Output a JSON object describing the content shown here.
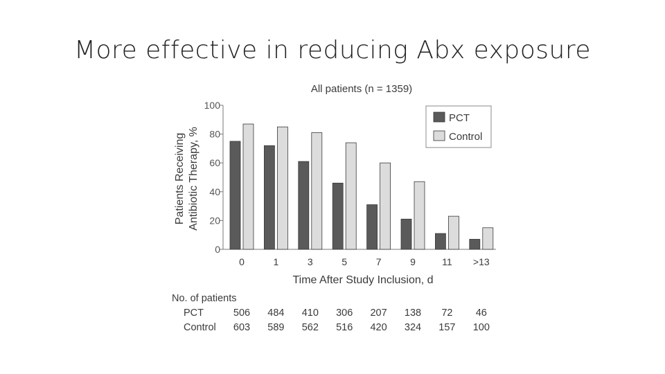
{
  "slide": {
    "title": "More effective in reducing Abx exposure"
  },
  "chart_data": {
    "type": "bar",
    "title": "All patients (n = 1359)",
    "xlabel": "Time After Study Inclusion, d",
    "ylabel_line1": "Patients Receiving",
    "ylabel_line2": "Antibiotic Therapy, %",
    "ylim": [
      0,
      100
    ],
    "yticks": [
      0,
      20,
      40,
      60,
      80,
      100
    ],
    "categories": [
      "0",
      "1",
      "3",
      "5",
      "7",
      "9",
      "11",
      ">13"
    ],
    "series": [
      {
        "name": "PCT",
        "color": "#5a5a5a",
        "values": [
          75,
          72,
          61,
          46,
          31,
          21,
          11,
          7
        ]
      },
      {
        "name": "Control",
        "color": "#dcdcdc",
        "values": [
          87,
          85,
          81,
          74,
          60,
          47,
          23,
          15
        ]
      }
    ],
    "legend_position": "top-right",
    "grid": false,
    "patients_table": {
      "header": "No. of patients",
      "rows": [
        {
          "label": "PCT",
          "values": [
            "506",
            "484",
            "410",
            "306",
            "207",
            "138",
            "72",
            "46"
          ]
        },
        {
          "label": "Control",
          "values": [
            "603",
            "589",
            "562",
            "516",
            "420",
            "324",
            "157",
            "100"
          ]
        }
      ]
    }
  }
}
